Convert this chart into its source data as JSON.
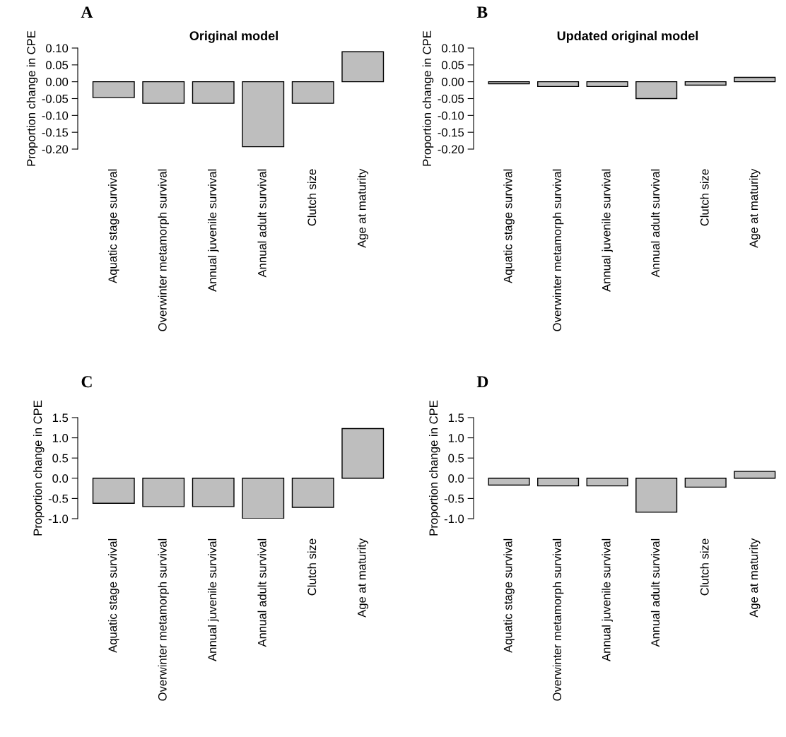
{
  "chart_data": [
    {
      "type": "bar",
      "title": "Original model",
      "ylabel": "Proportion change in CPE",
      "annotations": [
        "A"
      ],
      "categories": [
        "Aquatic stage survival",
        "Overwinter metamorph survival",
        "Annual juvenile survival",
        "Annual adult survival",
        "Clutch size",
        "Age at maturity"
      ],
      "values": [
        -0.047,
        -0.064,
        -0.064,
        -0.193,
        -0.064,
        0.089
      ],
      "color": "#bebebe",
      "ylim": [
        -0.2,
        0.1
      ],
      "yticks": [
        {
          "value": -0.2,
          "label": "-0.20"
        },
        {
          "value": -0.15,
          "label": "-0.15"
        },
        {
          "value": -0.1,
          "label": "-0.10"
        },
        {
          "value": -0.05,
          "label": "-0.05"
        },
        {
          "value": 0,
          "label": "0.00"
        },
        {
          "value": 0.05,
          "label": "0.05"
        },
        {
          "value": 0.1,
          "label": "0.10"
        }
      ],
      "grid": false
    },
    {
      "type": "bar",
      "title": "Updated original model",
      "ylabel": "Proportion change in CPE",
      "annotations": [
        "B"
      ],
      "categories": [
        "Aquatic stage survival",
        "Overwinter metamorph survival",
        "Annual juvenile survival",
        "Annual adult survival",
        "Clutch size",
        "Age at maturity"
      ],
      "values": [
        -0.006,
        -0.014,
        -0.014,
        -0.05,
        -0.01,
        0.013
      ],
      "color": "#bebebe",
      "ylim": [
        -0.2,
        0.1
      ],
      "yticks": [
        {
          "value": -0.2,
          "label": "-0.20"
        },
        {
          "value": -0.15,
          "label": "-0.15"
        },
        {
          "value": -0.1,
          "label": "-0.10"
        },
        {
          "value": -0.05,
          "label": "-0.05"
        },
        {
          "value": 0,
          "label": "0.00"
        },
        {
          "value": 0.05,
          "label": "0.05"
        },
        {
          "value": 0.1,
          "label": "0.10"
        }
      ],
      "grid": false
    },
    {
      "type": "bar",
      "ylabel": "Proportion change in CPE",
      "annotations": [
        "C"
      ],
      "categories": [
        "Aquatic stage survival",
        "Overwinter metamorph survival",
        "Annual juvenile survival",
        "Annual adult survival",
        "Clutch size",
        "Age at maturity"
      ],
      "values": [
        -0.62,
        -0.7,
        -0.7,
        -1.0,
        -0.72,
        1.23
      ],
      "color": "#bebebe",
      "ylim": [
        -1.0,
        1.5
      ],
      "yticks": [
        {
          "value": -1.0,
          "label": "-1.0"
        },
        {
          "value": -0.5,
          "label": "-0.5"
        },
        {
          "value": 0,
          "label": "0.0"
        },
        {
          "value": 0.5,
          "label": "0.5"
        },
        {
          "value": 1.0,
          "label": "1.0"
        },
        {
          "value": 1.5,
          "label": "1.5"
        }
      ],
      "grid": false
    },
    {
      "type": "bar",
      "ylabel": "Proportion change in CPE",
      "annotations": [
        "D"
      ],
      "categories": [
        "Aquatic stage survival",
        "Overwinter metamorph survival",
        "Annual juvenile survival",
        "Annual adult survival",
        "Clutch size",
        "Age at maturity"
      ],
      "values": [
        -0.17,
        -0.19,
        -0.19,
        -0.84,
        -0.22,
        0.17
      ],
      "color": "#bebebe",
      "ylim": [
        -1.0,
        1.5
      ],
      "yticks": [
        {
          "value": -1.0,
          "label": "-1.0"
        },
        {
          "value": -0.5,
          "label": "-0.5"
        },
        {
          "value": 0,
          "label": "0.0"
        },
        {
          "value": 0.5,
          "label": "0.5"
        },
        {
          "value": 1.0,
          "label": "1.0"
        },
        {
          "value": 1.5,
          "label": "1.5"
        }
      ],
      "grid": false
    }
  ]
}
